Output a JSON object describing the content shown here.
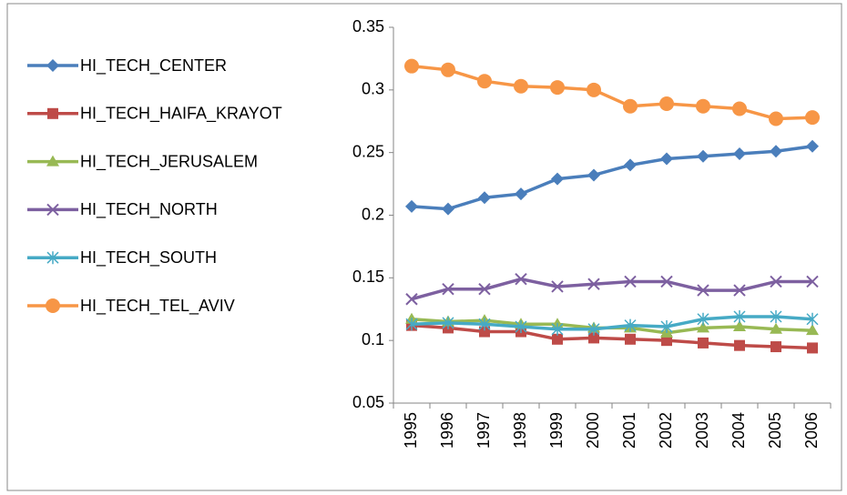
{
  "chart_data": {
    "type": "line",
    "categories": [
      "1995",
      "1996",
      "1997",
      "1998",
      "1999",
      "2000",
      "2001",
      "2002",
      "2003",
      "2004",
      "2005",
      "2006"
    ],
    "series": [
      {
        "name": "HI_TECH_CENTER",
        "color": "#4a7ebb",
        "marker": "diamond",
        "values": [
          0.207,
          0.205,
          0.214,
          0.217,
          0.229,
          0.232,
          0.24,
          0.245,
          0.247,
          0.249,
          0.251,
          0.255
        ]
      },
      {
        "name": "HI_TECH_HAIFA_KRAYOT",
        "color": "#be4b48",
        "marker": "square",
        "values": [
          0.112,
          0.11,
          0.107,
          0.107,
          0.101,
          0.102,
          0.101,
          0.1,
          0.098,
          0.096,
          0.095,
          0.094
        ]
      },
      {
        "name": "HI_TECH_JERUSALEM",
        "color": "#98b954",
        "marker": "triangle",
        "values": [
          0.117,
          0.115,
          0.116,
          0.113,
          0.113,
          0.11,
          0.11,
          0.106,
          0.11,
          0.111,
          0.109,
          0.108
        ]
      },
      {
        "name": "HI_TECH_NORTH",
        "color": "#7d60a0",
        "marker": "x",
        "values": [
          0.133,
          0.141,
          0.141,
          0.149,
          0.143,
          0.145,
          0.147,
          0.147,
          0.14,
          0.14,
          0.147,
          0.147
        ]
      },
      {
        "name": "HI_TECH_SOUTH",
        "color": "#46aac5",
        "marker": "star",
        "values": [
          0.113,
          0.114,
          0.113,
          0.111,
          0.109,
          0.109,
          0.112,
          0.111,
          0.117,
          0.119,
          0.119,
          0.117
        ]
      },
      {
        "name": "HI_TECH_TEL_AVIV",
        "color": "#f79646",
        "marker": "circle",
        "values": [
          0.319,
          0.316,
          0.307,
          0.303,
          0.302,
          0.3,
          0.287,
          0.289,
          0.287,
          0.285,
          0.277,
          0.278
        ]
      }
    ],
    "ylim": [
      0.05,
      0.35
    ],
    "yticks": [
      0.05,
      0.1,
      0.15,
      0.2,
      0.25,
      0.3,
      0.35
    ],
    "grid": false,
    "legend": "left"
  }
}
